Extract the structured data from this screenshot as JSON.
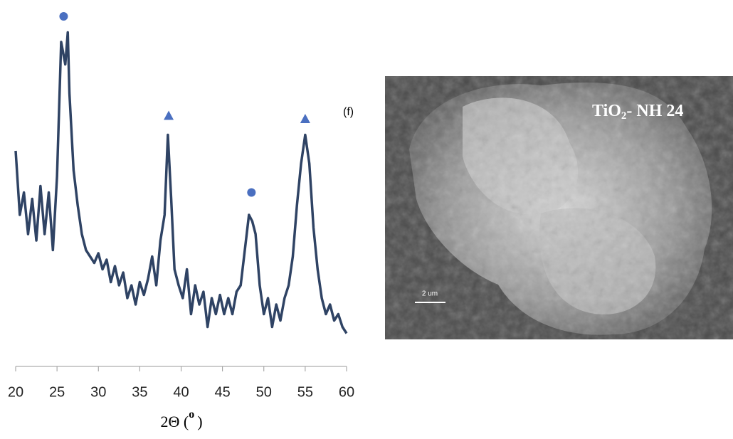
{
  "chart_data": {
    "type": "line",
    "x": [
      20,
      20.5,
      21,
      21.5,
      22,
      22.5,
      23,
      23.5,
      24,
      24.5,
      25,
      25.5,
      26,
      26.3,
      26.5,
      27,
      27.5,
      28,
      28.5,
      29,
      29.5,
      30,
      30.5,
      31,
      31.5,
      32,
      32.5,
      33,
      33.5,
      34,
      34.5,
      35,
      35.5,
      36,
      36.5,
      37,
      37.5,
      38,
      38.4,
      38.8,
      39.2,
      39.7,
      40.2,
      40.7,
      41.2,
      41.7,
      42.2,
      42.7,
      43.2,
      43.7,
      44.2,
      44.7,
      45.2,
      45.7,
      46.2,
      46.7,
      47.2,
      47.7,
      48.2,
      48.6,
      49,
      49.5,
      50,
      50.5,
      51,
      51.5,
      52,
      52.5,
      53,
      53.5,
      54,
      54.5,
      55,
      55.5,
      56,
      56.5,
      57,
      57.5,
      58,
      58.5,
      59,
      59.5,
      60
    ],
    "series": [
      {
        "color": "#2f4364",
        "values": [
          64,
          44,
          51,
          38,
          49,
          36,
          53,
          38,
          51,
          33,
          56,
          98,
          91,
          101,
          82,
          58,
          47,
          38,
          33,
          31,
          29,
          32,
          27,
          30,
          23,
          28,
          22,
          26,
          18,
          22,
          16,
          23,
          19,
          24,
          31,
          22,
          36,
          44,
          69,
          49,
          27,
          22,
          18,
          27,
          13,
          22,
          16,
          20,
          9,
          18,
          13,
          19,
          13,
          18,
          13,
          20,
          22,
          33,
          44,
          42,
          38,
          22,
          13,
          18,
          9,
          16,
          11,
          18,
          22,
          31,
          47,
          60,
          69,
          60,
          40,
          27,
          18,
          13,
          16,
          11,
          13,
          9,
          7
        ]
      }
    ],
    "markers": [
      {
        "shape": "circle",
        "x": 25.8,
        "y": 106,
        "color": "#4a6fc0"
      },
      {
        "shape": "triangle",
        "x": 38.5,
        "y": 75,
        "color": "#4a6fc0"
      },
      {
        "shape": "circle",
        "x": 48.5,
        "y": 51,
        "color": "#4a6fc0"
      },
      {
        "shape": "triangle",
        "x": 55,
        "y": 74,
        "color": "#4a6fc0"
      }
    ],
    "xlim": [
      20,
      60
    ],
    "ylim": [
      0,
      110
    ],
    "xticks": [
      20,
      25,
      30,
      35,
      40,
      45,
      50,
      55,
      60
    ],
    "xlabel": {
      "main": "2Θ (",
      "sup": "o",
      "end": ")"
    }
  },
  "image": {
    "panel_label": "(f)",
    "caption": {
      "main": "TiO",
      "sub": "2",
      "rest": "- NH 24"
    },
    "scale_bar": "2 um"
  }
}
